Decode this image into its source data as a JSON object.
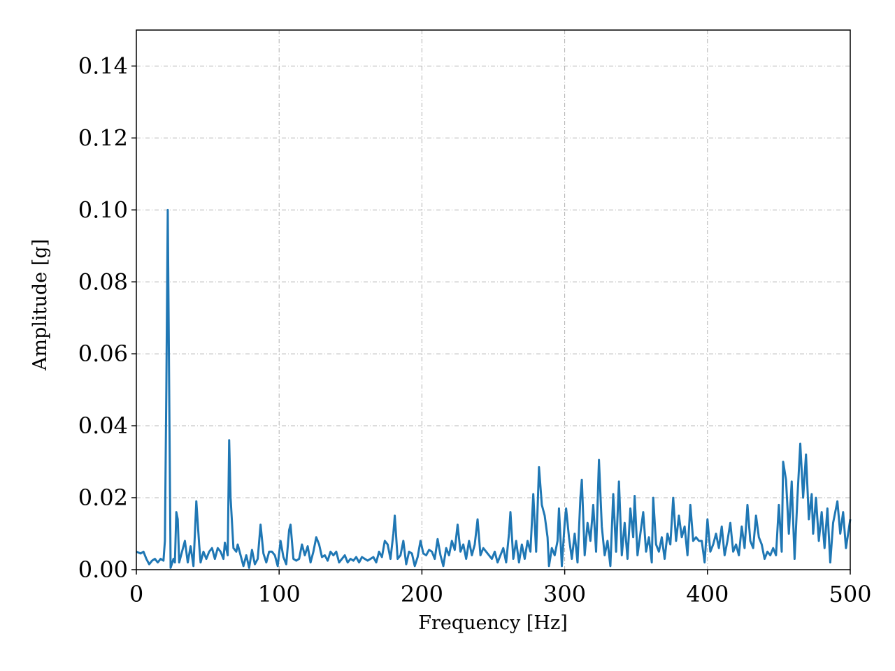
{
  "chart_data": {
    "type": "line",
    "xlabel": "Frequency [Hz]",
    "ylabel": "Amplitude [g]",
    "xlim": [
      0,
      500
    ],
    "ylim": [
      0,
      0.15
    ],
    "xticks": [
      0,
      100,
      200,
      300,
      400,
      500
    ],
    "yticks": [
      {
        "value": 0,
        "label": "0.00"
      },
      {
        "value": 0.02,
        "label": "0.02"
      },
      {
        "value": 0.04,
        "label": "0.04"
      },
      {
        "value": 0.06,
        "label": "0.06"
      },
      {
        "value": 0.08,
        "label": "0.08"
      },
      {
        "value": 0.1,
        "label": "0.10"
      },
      {
        "value": 0.12,
        "label": "0.12"
      },
      {
        "value": 0.14,
        "label": "0.14"
      }
    ],
    "grid": true,
    "series": [
      {
        "color": "#1f77b4",
        "x": [
          0,
          3,
          5,
          7,
          9,
          11,
          13,
          15,
          17,
          19,
          20,
          21,
          22,
          23,
          24,
          26,
          27,
          28,
          29,
          30,
          32,
          34,
          36,
          38,
          40,
          42,
          44,
          45,
          47,
          49,
          51,
          53,
          55,
          57,
          59,
          61,
          62,
          64,
          65,
          66,
          68,
          70,
          71,
          73,
          75,
          77,
          79,
          81,
          83,
          85,
          87,
          89,
          91,
          93,
          95,
          97,
          99,
          101,
          103,
          105,
          107,
          108,
          110,
          112,
          114,
          116,
          118,
          120,
          122,
          124,
          126,
          128,
          130,
          132,
          134,
          136,
          138,
          140,
          142,
          144,
          146,
          148,
          150,
          152,
          154,
          156,
          158,
          160,
          162,
          164,
          166,
          168,
          170,
          172,
          174,
          176,
          178,
          180,
          181,
          183,
          185,
          187,
          189,
          191,
          193,
          195,
          197,
          199,
          201,
          203,
          205,
          207,
          209,
          211,
          213,
          215,
          217,
          219,
          221,
          223,
          225,
          227,
          229,
          231,
          233,
          235,
          237,
          239,
          241,
          243,
          245,
          247,
          249,
          251,
          253,
          255,
          257,
          259,
          261,
          262,
          264,
          266,
          268,
          270,
          272,
          274,
          276,
          278,
          280,
          282,
          284,
          286,
          288,
          289,
          291,
          293,
          295,
          296,
          298,
          300,
          301,
          303,
          305,
          307,
          309,
          311,
          312,
          314,
          316,
          318,
          320,
          322,
          324,
          326,
          328,
          330,
          332,
          334,
          336,
          338,
          340,
          342,
          344,
          346,
          348,
          349,
          351,
          353,
          355,
          357,
          359,
          361,
          362,
          364,
          366,
          368,
          370,
          372,
          374,
          376,
          378,
          380,
          382,
          384,
          386,
          388,
          390,
          392,
          394,
          396,
          398,
          400,
          402,
          404,
          406,
          408,
          410,
          412,
          414,
          416,
          418,
          420,
          422,
          424,
          426,
          428,
          430,
          432,
          434,
          436,
          438,
          440,
          442,
          444,
          446,
          448,
          450,
          452,
          453,
          455,
          457,
          459,
          461,
          463,
          465,
          467,
          469,
          471,
          473,
          474,
          476,
          478,
          480,
          482,
          484,
          486,
          488,
          490,
          491,
          493,
          495,
          497,
          500
        ],
        "values": [
          0.005,
          0.0045,
          0.005,
          0.003,
          0.0015,
          0.0025,
          0.003,
          0.002,
          0.003,
          0.0025,
          0.008,
          0.05,
          0.1,
          0.05,
          0.0005,
          0.003,
          0.002,
          0.016,
          0.014,
          0.002,
          0.005,
          0.008,
          0.002,
          0.0065,
          0.001,
          0.019,
          0.007,
          0.002,
          0.005,
          0.003,
          0.005,
          0.006,
          0.003,
          0.006,
          0.005,
          0.003,
          0.0075,
          0.004,
          0.036,
          0.02,
          0.006,
          0.005,
          0.007,
          0.004,
          0.001,
          0.004,
          0.0005,
          0.0055,
          0.0015,
          0.003,
          0.0125,
          0.0045,
          0.002,
          0.005,
          0.005,
          0.004,
          0.001,
          0.008,
          0.0035,
          0.0015,
          0.011,
          0.0125,
          0.003,
          0.0025,
          0.003,
          0.007,
          0.004,
          0.0065,
          0.002,
          0.005,
          0.009,
          0.007,
          0.0035,
          0.004,
          0.0025,
          0.005,
          0.004,
          0.005,
          0.002,
          0.003,
          0.004,
          0.002,
          0.003,
          0.0025,
          0.0035,
          0.002,
          0.0035,
          0.003,
          0.0025,
          0.003,
          0.0035,
          0.002,
          0.005,
          0.0035,
          0.008,
          0.007,
          0.003,
          0.01,
          0.015,
          0.003,
          0.004,
          0.008,
          0.0015,
          0.005,
          0.0045,
          0.001,
          0.0035,
          0.008,
          0.0045,
          0.004,
          0.0055,
          0.005,
          0.003,
          0.0085,
          0.004,
          0.001,
          0.006,
          0.004,
          0.008,
          0.0055,
          0.0125,
          0.005,
          0.007,
          0.003,
          0.008,
          0.004,
          0.007,
          0.014,
          0.004,
          0.006,
          0.005,
          0.004,
          0.003,
          0.005,
          0.002,
          0.004,
          0.006,
          0.002,
          0.01,
          0.016,
          0.003,
          0.008,
          0.002,
          0.007,
          0.003,
          0.008,
          0.005,
          0.021,
          0.005,
          0.0285,
          0.018,
          0.015,
          0.009,
          0.001,
          0.006,
          0.004,
          0.008,
          0.017,
          0.001,
          0.013,
          0.017,
          0.009,
          0.003,
          0.01,
          0.002,
          0.02,
          0.025,
          0.004,
          0.013,
          0.008,
          0.018,
          0.005,
          0.0305,
          0.012,
          0.004,
          0.008,
          0.001,
          0.021,
          0.005,
          0.0245,
          0.004,
          0.013,
          0.003,
          0.017,
          0.009,
          0.0205,
          0.004,
          0.01,
          0.016,
          0.005,
          0.009,
          0.002,
          0.02,
          0.007,
          0.005,
          0.009,
          0.003,
          0.01,
          0.007,
          0.02,
          0.008,
          0.015,
          0.009,
          0.012,
          0.004,
          0.018,
          0.008,
          0.009,
          0.008,
          0.008,
          0.002,
          0.014,
          0.005,
          0.007,
          0.01,
          0.006,
          0.012,
          0.004,
          0.008,
          0.013,
          0.005,
          0.007,
          0.004,
          0.012,
          0.006,
          0.018,
          0.008,
          0.006,
          0.015,
          0.009,
          0.007,
          0.003,
          0.005,
          0.004,
          0.006,
          0.004,
          0.018,
          0.005,
          0.03,
          0.025,
          0.01,
          0.0245,
          0.003,
          0.02,
          0.035,
          0.02,
          0.032,
          0.014,
          0.021,
          0.01,
          0.02,
          0.008,
          0.016,
          0.006,
          0.017,
          0.002,
          0.013,
          0.017,
          0.019,
          0.01,
          0.016,
          0.006,
          0.014
        ]
      }
    ]
  }
}
